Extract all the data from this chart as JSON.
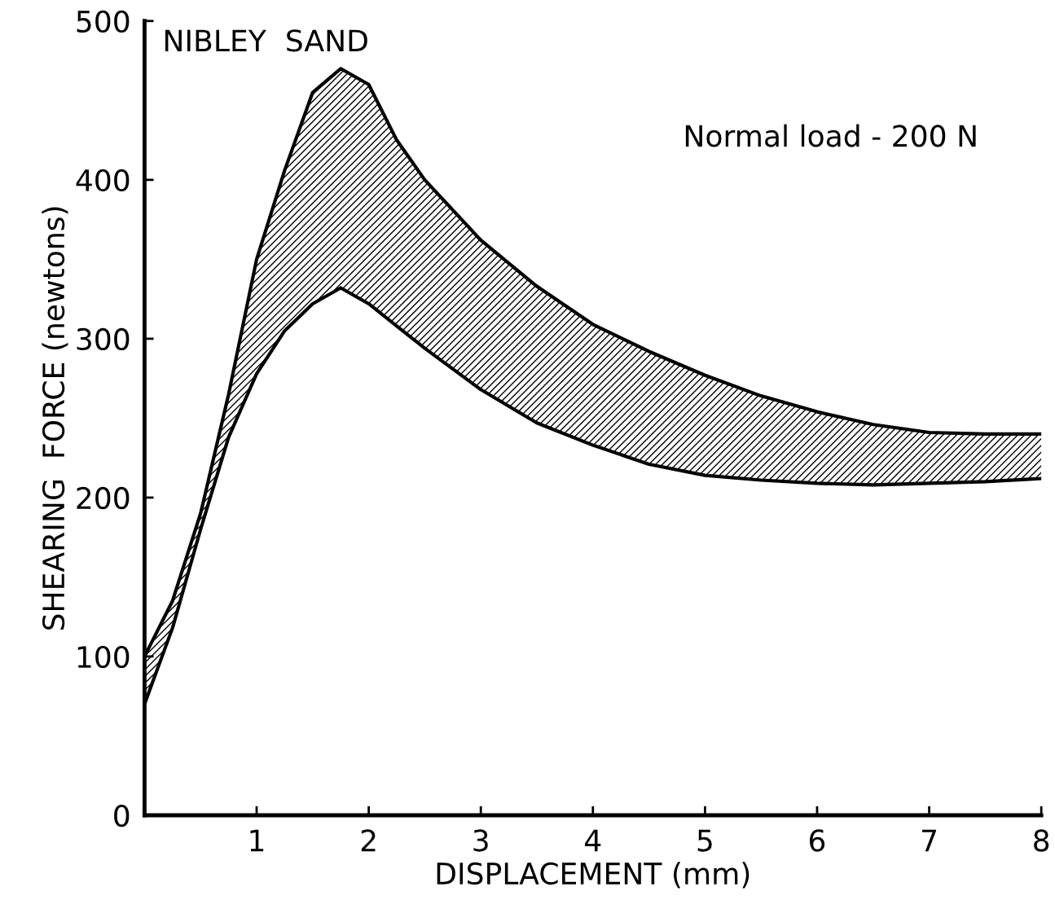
{
  "chart_data": {
    "type": "area",
    "xlabel": "DISPLACEMENT (mm)",
    "ylabel": "SHEARING  FORCE (newtons)",
    "annotations": [
      "NIBLEY  SAND",
      "Normal load - 200 N"
    ],
    "x": [
      0,
      0.25,
      0.5,
      0.75,
      1,
      1.25,
      1.5,
      1.75,
      2,
      2.25,
      2.5,
      3,
      3.5,
      4,
      4.5,
      5,
      5.5,
      6,
      6.5,
      7,
      7.5,
      8
    ],
    "series": [
      {
        "color": "#000000",
        "values": [
          100,
          135,
          190,
          265,
          350,
          406,
          455,
          470,
          460,
          425,
          400,
          362,
          333,
          309,
          292,
          277,
          264,
          254,
          246,
          241,
          240,
          240
        ]
      },
      {
        "type": "line",
        "color": "#000000",
        "values": [
          70,
          118,
          180,
          238,
          278,
          305,
          322,
          332,
          322,
          308,
          294,
          268,
          247,
          233,
          221,
          214,
          211,
          209,
          208,
          209,
          210,
          212
        ]
      }
    ],
    "xlim": [
      0,
      8
    ],
    "ylim": [
      0,
      500
    ],
    "xticks": [
      1,
      2,
      3,
      4,
      5,
      6,
      7,
      8
    ],
    "yticks": [
      0,
      100,
      200,
      300,
      400,
      500
    ],
    "grid": false,
    "legend": false
  }
}
